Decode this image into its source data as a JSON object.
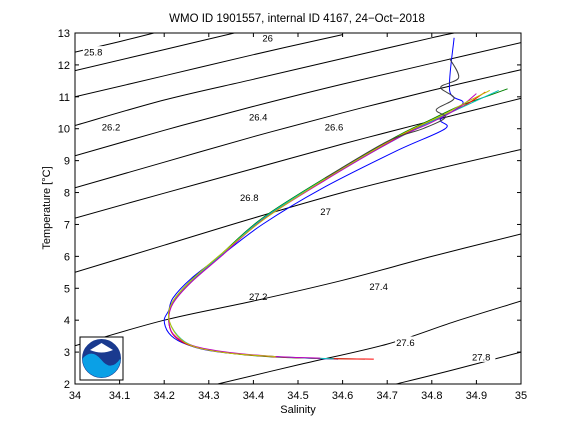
{
  "chart_data": {
    "type": "line",
    "title": "WMO ID 1901557, internal ID 4167, 24−Oct−2018",
    "xlabel": "Salinity",
    "ylabel": "Temperature [°C]",
    "xlim": [
      34,
      35
    ],
    "ylim": [
      2,
      13
    ],
    "xticks": [
      "34",
      "34.1",
      "34.2",
      "34.3",
      "34.4",
      "34.5",
      "34.6",
      "34.7",
      "34.8",
      "34.9",
      "35"
    ],
    "yticks": [
      "2",
      "3",
      "4",
      "5",
      "6",
      "7",
      "8",
      "9",
      "10",
      "11",
      "12",
      "13"
    ],
    "grid": false,
    "legend": "none",
    "density_contours": [
      {
        "label": "25.8",
        "points": [
          [
            34.0,
            12.4
          ],
          [
            34.1,
            12.73
          ],
          [
            34.2,
            13.08
          ]
        ],
        "label_at": [
          34.02,
          12.4
        ]
      },
      {
        "label": "26",
        "points": [
          [
            34.0,
            11.82
          ],
          [
            34.2,
            12.48
          ],
          [
            34.4,
            13.14
          ]
        ],
        "label_at": [
          34.42,
          12.84
        ]
      },
      {
        "label": "26.2",
        "points": [
          [
            34.0,
            11.0
          ],
          [
            34.2,
            11.66
          ],
          [
            34.4,
            12.32
          ],
          [
            34.6,
            12.95
          ]
        ],
        "label_at": [
          34.06,
          10.05
        ]
      },
      {
        "label": "26.4",
        "points": [
          [
            34.0,
            10.1
          ],
          [
            34.2,
            10.9
          ],
          [
            34.4,
            11.55
          ],
          [
            34.6,
            12.2
          ],
          [
            34.8,
            12.85
          ],
          [
            34.85,
            13.0
          ]
        ],
        "label_at": [
          34.39,
          10.36
        ]
      },
      {
        "label": "26.6",
        "points": [
          [
            34.0,
            9.15
          ],
          [
            34.2,
            9.95
          ],
          [
            34.4,
            10.7
          ],
          [
            34.6,
            11.4
          ],
          [
            34.8,
            12.05
          ],
          [
            35.0,
            12.7
          ]
        ],
        "label_at": [
          34.56,
          10.05
        ]
      },
      {
        "label": "26.8",
        "points": [
          [
            34.0,
            8.15
          ],
          [
            34.2,
            8.95
          ],
          [
            34.4,
            9.75
          ],
          [
            34.6,
            10.5
          ],
          [
            34.8,
            11.2
          ],
          [
            35.0,
            11.85
          ]
        ],
        "label_at": [
          34.37,
          7.85
        ]
      },
      {
        "label": "27",
        "points": [
          [
            34.0,
            7.2
          ],
          [
            34.2,
            7.98
          ],
          [
            34.4,
            8.75
          ],
          [
            34.6,
            9.52
          ],
          [
            34.8,
            10.25
          ],
          [
            35.0,
            10.95
          ]
        ],
        "label_at": [
          34.55,
          7.4
        ]
      },
      {
        "label": "27.2",
        "points": [
          [
            34.0,
            5.5
          ],
          [
            34.2,
            6.35
          ],
          [
            34.4,
            7.2
          ],
          [
            34.6,
            8.0
          ],
          [
            34.8,
            8.7
          ],
          [
            35.0,
            9.35
          ]
        ],
        "label_at": [
          34.39,
          4.75
        ]
      },
      {
        "label": "27.4",
        "points": [
          [
            34.0,
            3.2
          ],
          [
            34.2,
            4.0
          ],
          [
            34.4,
            4.6
          ],
          [
            34.6,
            5.25
          ],
          [
            34.8,
            6.0
          ],
          [
            35.0,
            6.7
          ]
        ],
        "label_at": [
          34.66,
          5.05
        ]
      },
      {
        "label": "27.6",
        "points": [
          [
            34.32,
            2.0
          ],
          [
            34.5,
            2.6
          ],
          [
            34.7,
            3.25
          ],
          [
            34.85,
            3.95
          ],
          [
            35.0,
            4.6
          ]
        ],
        "label_at": [
          34.72,
          3.3
        ]
      },
      {
        "label": "27.8",
        "points": [
          [
            34.72,
            2.0
          ],
          [
            34.85,
            2.45
          ],
          [
            35.0,
            3.0
          ]
        ],
        "label_at": [
          34.89,
          2.85
        ]
      }
    ],
    "series": [
      {
        "color": "#0000ff",
        "x": [
          34.85,
          34.84,
          34.87,
          34.82,
          34.83,
          34.72,
          34.55,
          34.42,
          34.33,
          34.26,
          34.22,
          34.21,
          34.2,
          34.21,
          34.24,
          34.3,
          34.4,
          34.5,
          34.59
        ],
        "y": [
          12.85,
          11.2,
          10.8,
          10.3,
          10.0,
          9.3,
          8.1,
          7.0,
          6.05,
          5.3,
          4.7,
          4.3,
          4.0,
          3.6,
          3.3,
          3.05,
          2.9,
          2.82,
          2.78
        ]
      },
      {
        "color": "#008000",
        "x": [
          34.97,
          34.92,
          34.86,
          34.8,
          34.72,
          34.56,
          34.42,
          34.33,
          34.26,
          34.22,
          34.21,
          34.22,
          34.26,
          34.33,
          34.44,
          34.56,
          34.65
        ],
        "y": [
          11.25,
          11.0,
          10.7,
          10.3,
          9.75,
          8.45,
          7.2,
          6.1,
          5.25,
          4.6,
          4.1,
          3.55,
          3.2,
          3.0,
          2.85,
          2.8,
          2.78
        ]
      },
      {
        "color": "#ff0000",
        "x": [
          34.92,
          34.87,
          34.8,
          34.72,
          34.56,
          34.42,
          34.33,
          34.26,
          34.22,
          34.21,
          34.22,
          34.26,
          34.33,
          34.44,
          34.56,
          34.67
        ],
        "y": [
          11.15,
          10.7,
          10.25,
          9.7,
          8.4,
          7.15,
          6.05,
          5.2,
          4.55,
          4.05,
          3.55,
          3.2,
          3.0,
          2.86,
          2.8,
          2.78
        ]
      },
      {
        "color": "#00bfbf",
        "x": [
          34.95,
          34.88,
          34.81,
          34.73,
          34.56,
          34.42,
          34.33,
          34.26,
          34.22,
          34.21,
          34.23,
          34.27,
          34.35,
          34.46,
          34.58
        ],
        "y": [
          11.2,
          10.75,
          10.3,
          9.75,
          8.42,
          7.17,
          6.07,
          5.22,
          4.58,
          4.07,
          3.52,
          3.17,
          2.97,
          2.85,
          2.79
        ]
      },
      {
        "color": "#bf00bf",
        "x": [
          34.9,
          34.86,
          34.8,
          34.72,
          34.56,
          34.42,
          34.33,
          34.26,
          34.22,
          34.21,
          34.22,
          34.26,
          34.33,
          34.44,
          34.55
        ],
        "y": [
          11.1,
          10.65,
          10.2,
          9.68,
          8.38,
          7.13,
          6.03,
          5.18,
          4.53,
          4.02,
          3.57,
          3.22,
          3.02,
          2.87,
          2.81
        ]
      },
      {
        "color": "#bfbf00",
        "x": [
          34.93,
          34.88,
          34.82,
          34.73,
          34.57,
          34.43,
          34.33,
          34.26,
          34.22,
          34.21,
          34.23,
          34.27,
          34.35,
          34.45
        ],
        "y": [
          11.2,
          10.85,
          10.4,
          9.8,
          8.5,
          7.22,
          6.1,
          5.24,
          4.6,
          4.08,
          3.5,
          3.16,
          2.96,
          2.86
        ]
      },
      {
        "color": "#404040",
        "x": [
          34.84,
          34.86,
          34.82,
          34.85,
          34.81,
          34.83,
          34.78,
          34.7,
          34.56
        ],
        "y": [
          12.2,
          11.6,
          11.3,
          10.95,
          10.6,
          10.35,
          10.0,
          9.6,
          8.45
        ]
      }
    ]
  }
}
